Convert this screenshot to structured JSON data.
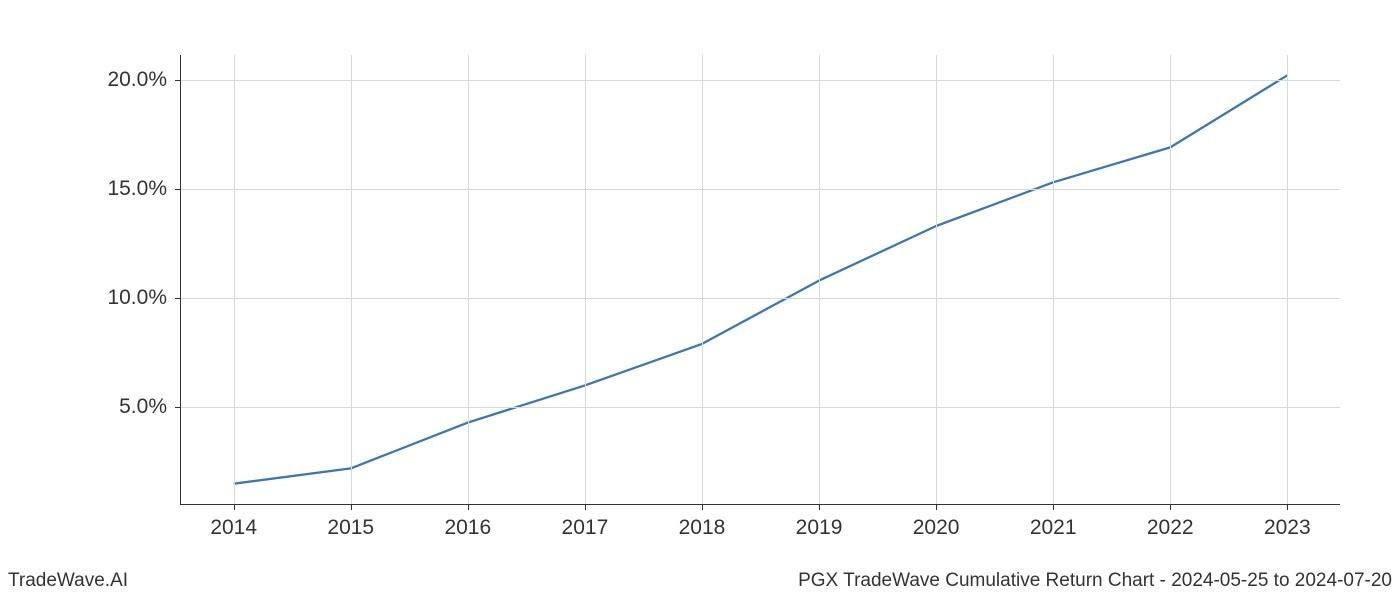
{
  "chart": {
    "type": "line",
    "x_values": [
      2014,
      2015,
      2016,
      2017,
      2018,
      2019,
      2020,
      2021,
      2022,
      2023
    ],
    "y_values": [
      1.5,
      2.2,
      4.3,
      6.0,
      7.9,
      10.8,
      13.3,
      15.3,
      16.9,
      20.2
    ],
    "line_color": "#3a77b3",
    "line_width": 2.3,
    "background_color": "#ffffff",
    "grid_color": "#d9d9d9",
    "axis_color": "#333333",
    "x_axis": {
      "ticks": [
        2014,
        2015,
        2016,
        2017,
        2018,
        2019,
        2020,
        2021,
        2022,
        2023
      ],
      "tick_labels": [
        "2014",
        "2015",
        "2016",
        "2017",
        "2018",
        "2019",
        "2020",
        "2021",
        "2022",
        "2023"
      ],
      "xlim": [
        2013.55,
        2023.45
      ],
      "label_fontsize": 21
    },
    "y_axis": {
      "ticks": [
        5.0,
        10.0,
        15.0,
        20.0
      ],
      "tick_labels": [
        "5.0%",
        "10.0%",
        "15.0%",
        "20.0%"
      ],
      "ylim": [
        0.57,
        21.13
      ],
      "label_fontsize": 21
    }
  },
  "footer": {
    "left": "TradeWave.AI",
    "right": "PGX TradeWave Cumulative Return Chart - 2024-05-25 to 2024-07-20",
    "fontsize": 19,
    "color": "#333333"
  }
}
